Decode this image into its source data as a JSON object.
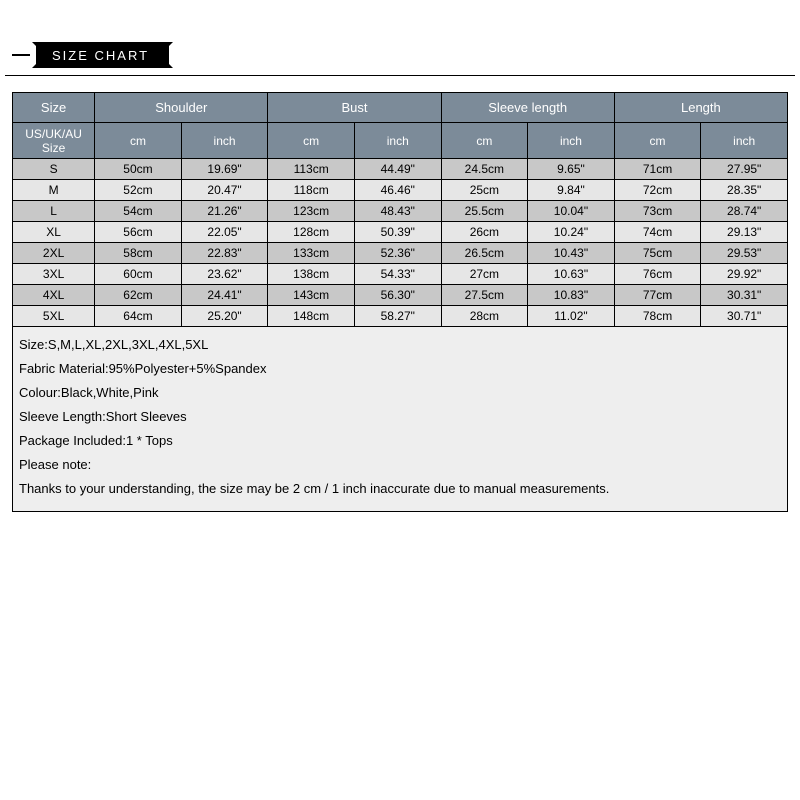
{
  "banner": {
    "label": "SIZE CHART"
  },
  "table": {
    "type": "table",
    "header_bg": "#7c8b99",
    "header_fg": "#ffffff",
    "row_alt_colors": [
      "#c8c8c8",
      "#e6e6e6"
    ],
    "border_color": "#000000",
    "size_col": "Size",
    "size_sub": "US/UK/AU Size",
    "groups": [
      {
        "label": "Shoulder",
        "units": [
          "cm",
          "inch"
        ]
      },
      {
        "label": "Bust",
        "units": [
          "cm",
          "inch"
        ]
      },
      {
        "label": "Sleeve length",
        "units": [
          "cm",
          "inch"
        ]
      },
      {
        "label": "Length",
        "units": [
          "cm",
          "inch"
        ]
      }
    ],
    "rows": [
      {
        "size": "S",
        "cells": [
          "50cm",
          "19.69\"",
          "113cm",
          "44.49\"",
          "24.5cm",
          "9.65\"",
          "71cm",
          "27.95\""
        ]
      },
      {
        "size": "M",
        "cells": [
          "52cm",
          "20.47\"",
          "118cm",
          "46.46\"",
          "25cm",
          "9.84\"",
          "72cm",
          "28.35\""
        ]
      },
      {
        "size": "L",
        "cells": [
          "54cm",
          "21.26\"",
          "123cm",
          "48.43\"",
          "25.5cm",
          "10.04\"",
          "73cm",
          "28.74\""
        ]
      },
      {
        "size": "XL",
        "cells": [
          "56cm",
          "22.05\"",
          "128cm",
          "50.39\"",
          "26cm",
          "10.24\"",
          "74cm",
          "29.13\""
        ]
      },
      {
        "size": "2XL",
        "cells": [
          "58cm",
          "22.83\"",
          "133cm",
          "52.36\"",
          "26.5cm",
          "10.43\"",
          "75cm",
          "29.53\""
        ]
      },
      {
        "size": "3XL",
        "cells": [
          "60cm",
          "23.62\"",
          "138cm",
          "54.33\"",
          "27cm",
          "10.63\"",
          "76cm",
          "29.92\""
        ]
      },
      {
        "size": "4XL",
        "cells": [
          "62cm",
          "24.41\"",
          "143cm",
          "56.30\"",
          "27.5cm",
          "10.83\"",
          "77cm",
          "30.31\""
        ]
      },
      {
        "size": "5XL",
        "cells": [
          "64cm",
          "25.20\"",
          "148cm",
          "58.27\"",
          "28cm",
          "11.02\"",
          "78cm",
          "30.71\""
        ]
      }
    ]
  },
  "notes": {
    "bg": "#eeeeee",
    "lines": [
      "Size:S,M,L,XL,2XL,3XL,4XL,5XL",
      "Fabric Material:95%Polyester+5%Spandex",
      "Colour:Black,White,Pink",
      "Sleeve Length:Short Sleeves",
      "Package Included:1 * Tops",
      "Please note:",
      "Thanks to your understanding, the size may be 2 cm / 1 inch inaccurate due to manual measurements."
    ]
  }
}
